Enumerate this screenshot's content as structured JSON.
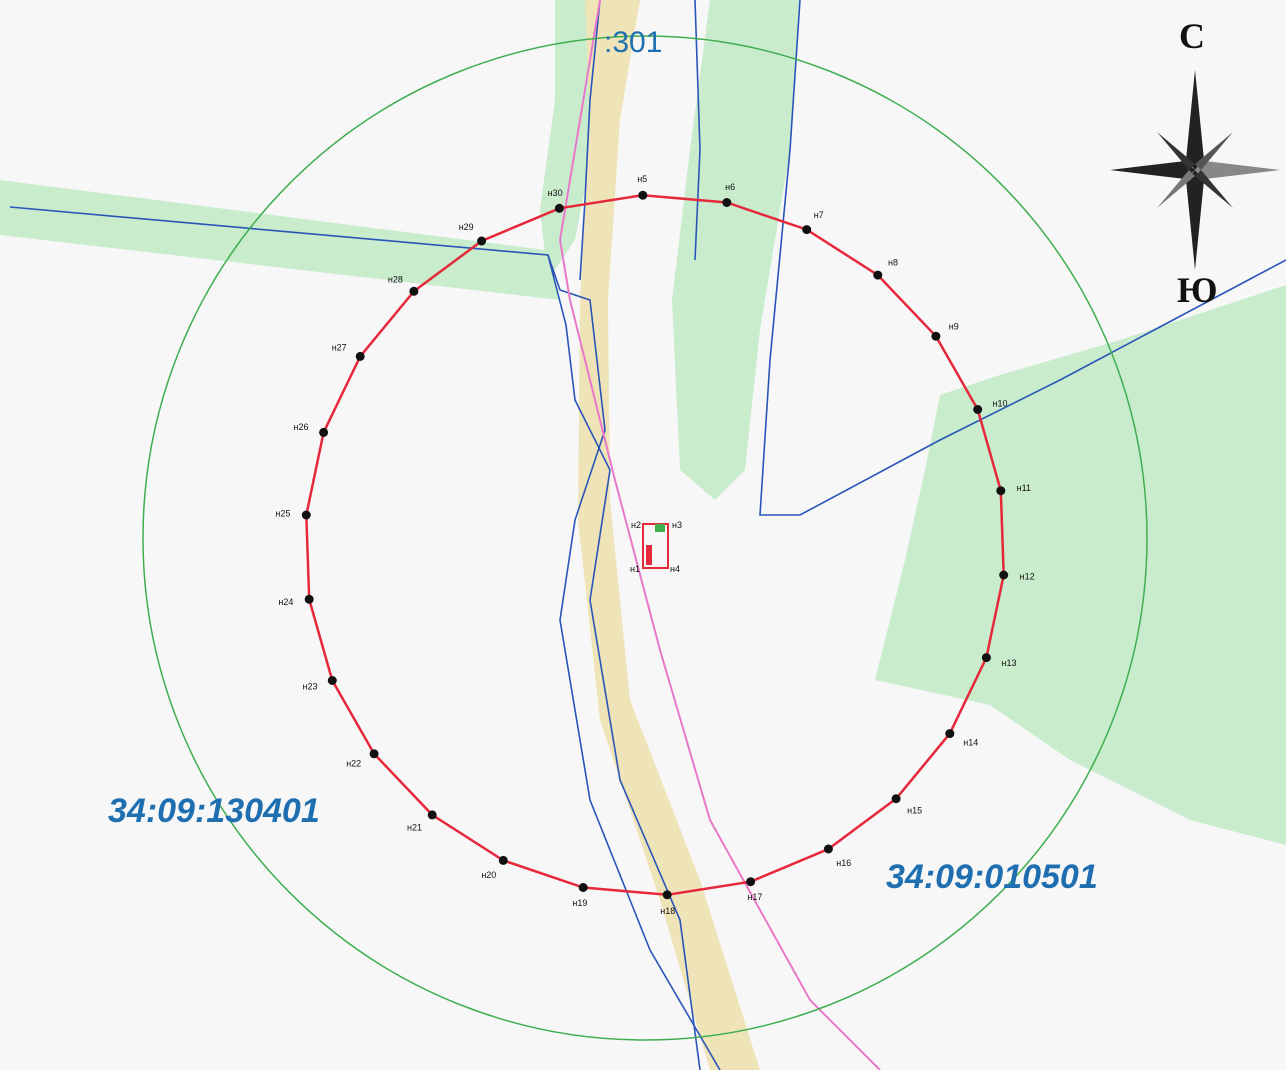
{
  "map": {
    "parcels": [
      {
        "label": "34:09:130401"
      },
      {
        "label": "34:09:010501"
      },
      {
        "label": ":301"
      }
    ],
    "boundary_points": [
      {
        "label": "н5"
      },
      {
        "label": "н6"
      },
      {
        "label": "н7"
      },
      {
        "label": "н8"
      },
      {
        "label": "н9"
      },
      {
        "label": "н10"
      },
      {
        "label": "н11"
      },
      {
        "label": "н12"
      },
      {
        "label": "н13"
      },
      {
        "label": "н14"
      },
      {
        "label": "н15"
      },
      {
        "label": "н16"
      },
      {
        "label": "н17"
      },
      {
        "label": "н18"
      },
      {
        "label": "н19"
      },
      {
        "label": "н20"
      },
      {
        "label": "н21"
      },
      {
        "label": "н22"
      },
      {
        "label": "н23"
      },
      {
        "label": "н24"
      },
      {
        "label": "н25"
      },
      {
        "label": "н26"
      },
      {
        "label": "н27"
      },
      {
        "label": "н28"
      },
      {
        "label": "н29"
      },
      {
        "label": "н30"
      }
    ],
    "object_points": [
      {
        "label": "н2"
      },
      {
        "label": "н3"
      },
      {
        "label": "н1"
      },
      {
        "label": "н4"
      }
    ],
    "compass": {
      "north": "С",
      "south": "Ю"
    },
    "colors": {
      "buffer_circle": "#3fae4f",
      "boundary": "#e5283a",
      "parcel_border": "#2a55b8",
      "road_line": "#e879c9",
      "green_zone": "#c9eccd",
      "road": "#efe3b8",
      "parcel_text": "#1f6fb0"
    }
  }
}
